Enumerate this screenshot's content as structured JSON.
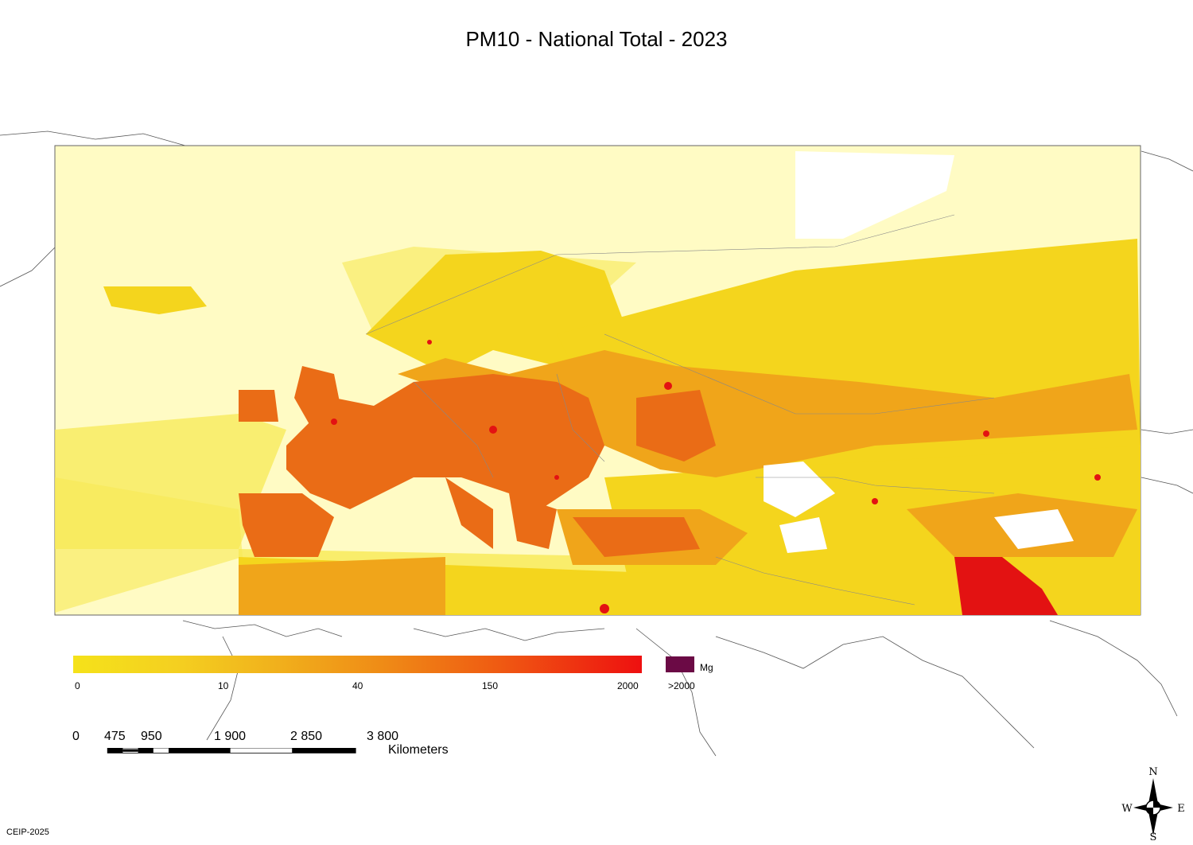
{
  "title": "PM10 - National Total - 2023",
  "legend": {
    "ticks": [
      "0",
      "10",
      "40",
      "150",
      "2000"
    ],
    "max_label": ">2000",
    "unit": "Mg",
    "color_min": "#f5e21a",
    "color_max": "#ee1010",
    "color_over": "#6b0a45"
  },
  "scale_bar": {
    "labels": [
      "0",
      "475",
      "950",
      "1 900",
      "2 850",
      "3 800"
    ],
    "unit": "Kilometers"
  },
  "compass": {
    "n": "N",
    "s": "S",
    "e": "E",
    "w": "W"
  },
  "credit": "CEIP-2025"
}
